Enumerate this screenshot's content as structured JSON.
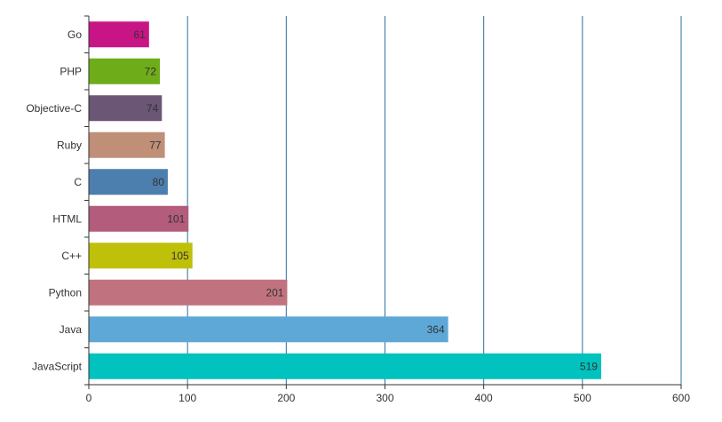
{
  "chart_data": {
    "type": "bar",
    "orientation": "horizontal",
    "categories": [
      "Go",
      "PHP",
      "Objective-C",
      "Ruby",
      "C",
      "HTML",
      "C++",
      "Python",
      "Java",
      "JavaScript"
    ],
    "values": [
      61,
      72,
      74,
      77,
      80,
      101,
      105,
      201,
      364,
      519
    ],
    "colors": [
      "#c71585",
      "#6fac1a",
      "#6b5675",
      "#bf8f78",
      "#4d7fae",
      "#b35c7c",
      "#bfc00a",
      "#c0737f",
      "#5ea8d8",
      "#00c2be"
    ],
    "data_labels": [
      "61",
      "72",
      "74",
      "77",
      "80",
      "101",
      "105",
      "201",
      "364",
      "519"
    ],
    "xlim": [
      0,
      600
    ],
    "x_ticks": [
      "0",
      "100",
      "200",
      "300",
      "400",
      "500",
      "600"
    ],
    "grid": "vertical",
    "title": "",
    "xlabel": "",
    "ylabel": ""
  }
}
